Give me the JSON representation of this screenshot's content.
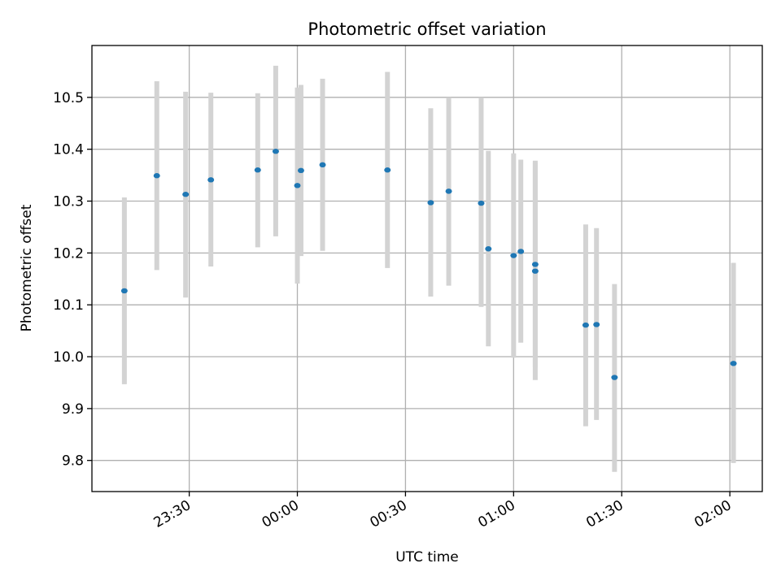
{
  "chart_data": {
    "type": "scatter",
    "title": "Photometric offset variation",
    "xlabel": "UTC time",
    "ylabel": "Photometric offset",
    "grid": true,
    "x_type": "time",
    "xlim": [
      "23:03",
      "02:09"
    ],
    "ylim": [
      9.74,
      10.6
    ],
    "x_ticks": [
      "23:30",
      "00:00",
      "00:30",
      "01:00",
      "01:30",
      "02:00"
    ],
    "y_ticks": [
      9.8,
      9.9,
      10.0,
      10.1,
      10.2,
      10.3,
      10.4,
      10.5
    ],
    "marker_color": "#1f77b4",
    "errorbar_color": "#d3d3d3",
    "points": [
      {
        "x": "23:12",
        "y": 10.127,
        "low": 9.947,
        "high": 10.307
      },
      {
        "x": "23:21",
        "y": 10.349,
        "low": 10.167,
        "high": 10.531
      },
      {
        "x": "23:29",
        "y": 10.313,
        "low": 10.114,
        "high": 10.511
      },
      {
        "x": "23:36",
        "y": 10.341,
        "low": 10.174,
        "high": 10.509
      },
      {
        "x": "23:49",
        "y": 10.36,
        "low": 10.211,
        "high": 10.508
      },
      {
        "x": "23:54",
        "y": 10.396,
        "low": 10.232,
        "high": 10.561
      },
      {
        "x": "00:00",
        "y": 10.33,
        "low": 10.141,
        "high": 10.519
      },
      {
        "x": "00:01",
        "y": 10.359,
        "low": 10.194,
        "high": 10.524
      },
      {
        "x": "00:07",
        "y": 10.37,
        "low": 10.204,
        "high": 10.536
      },
      {
        "x": "00:25",
        "y": 10.36,
        "low": 10.171,
        "high": 10.549
      },
      {
        "x": "00:37",
        "y": 10.297,
        "low": 10.116,
        "high": 10.479
      },
      {
        "x": "00:42",
        "y": 10.319,
        "low": 10.137,
        "high": 10.5
      },
      {
        "x": "00:51",
        "y": 10.296,
        "low": 10.096,
        "high": 10.5
      },
      {
        "x": "00:53",
        "y": 10.208,
        "low": 10.02,
        "high": 10.397
      },
      {
        "x": "01:00",
        "y": 10.195,
        "low": 9.998,
        "high": 10.392
      },
      {
        "x": "01:02",
        "y": 10.203,
        "low": 10.027,
        "high": 10.38
      },
      {
        "x": "01:06",
        "y": 10.165,
        "low": 9.955,
        "high": 10.375
      },
      {
        "x": "01:06",
        "y": 10.178,
        "low": 9.979,
        "high": 10.378
      },
      {
        "x": "01:20",
        "y": 10.061,
        "low": 9.866,
        "high": 10.255
      },
      {
        "x": "01:23",
        "y": 10.062,
        "low": 9.878,
        "high": 10.248
      },
      {
        "x": "01:28",
        "y": 9.96,
        "low": 9.778,
        "high": 10.14
      },
      {
        "x": "02:01",
        "y": 9.987,
        "low": 9.795,
        "high": 10.181
      }
    ]
  }
}
